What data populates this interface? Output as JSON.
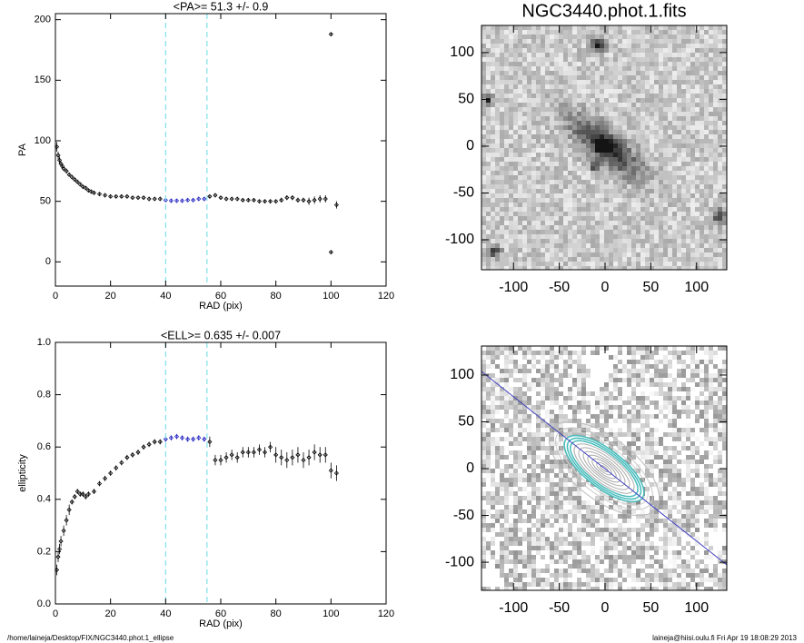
{
  "chart_data": [
    {
      "type": "scatter",
      "title": "<PA>=  51.3 +/-   0.9",
      "xlabel": "RAD (pix)",
      "ylabel": "PA",
      "xlim": [
        0,
        120
      ],
      "ylim": [
        -20,
        205
      ],
      "xticks": [
        0,
        20,
        40,
        60,
        80,
        100,
        120
      ],
      "yticks": [
        0,
        50,
        100,
        150,
        200
      ],
      "vlines": [
        40,
        55
      ],
      "vline_color": "#7fe0e8",
      "series": [
        {
          "color": "#000000",
          "x": [
            0.5,
            1,
            1.5,
            2,
            2.5,
            3,
            4,
            5,
            6,
            7,
            8,
            9,
            10,
            11,
            12,
            13,
            14,
            16,
            18,
            20,
            22,
            24,
            26,
            28,
            30,
            32,
            34,
            36,
            38
          ],
          "values": [
            95,
            88,
            84,
            81,
            79,
            77,
            75,
            72,
            70,
            68,
            66,
            64,
            62,
            61,
            59,
            58,
            57,
            56,
            55,
            54,
            54,
            54,
            54,
            53,
            53,
            53,
            52,
            52,
            52
          ],
          "errors": [
            4,
            3,
            3,
            2,
            2,
            2,
            2,
            1,
            1,
            1,
            1,
            1,
            1,
            1,
            1,
            1,
            1,
            1,
            1,
            1,
            1,
            1,
            1,
            1,
            1,
            1,
            1,
            1,
            1
          ]
        },
        {
          "color": "#2020c0",
          "x": [
            40,
            42,
            44,
            46,
            48,
            50,
            52,
            54
          ],
          "values": [
            51,
            50.5,
            50.5,
            50.5,
            51,
            51,
            52,
            52
          ],
          "errors": [
            1,
            1,
            1,
            1,
            1,
            1,
            1,
            1
          ]
        },
        {
          "color": "#000000",
          "x": [
            56,
            58,
            60,
            62,
            64,
            66,
            68,
            70,
            72,
            74,
            76,
            78,
            80,
            82,
            84,
            86,
            88,
            90,
            92,
            94,
            96,
            98,
            100,
            100,
            102
          ],
          "values": [
            54,
            55,
            53,
            52,
            52,
            52,
            51,
            51,
            51,
            50,
            50,
            50,
            50,
            51,
            53,
            53,
            51,
            51,
            50,
            51,
            52,
            52,
            188,
            8,
            47
          ],
          "errors": [
            1,
            1,
            1,
            1,
            1,
            1,
            1,
            1,
            1,
            1,
            1,
            1,
            1,
            2,
            2,
            2,
            2,
            2,
            3,
            3,
            3,
            3,
            1,
            1,
            3
          ]
        }
      ]
    },
    {
      "type": "scatter",
      "title": "<ELL>= 0.635 +/-  0.007",
      "xlabel": "RAD (pix)",
      "ylabel": "ellipticity",
      "xlim": [
        0,
        120
      ],
      "ylim": [
        0,
        1
      ],
      "xticks": [
        0,
        20,
        40,
        60,
        80,
        100,
        120
      ],
      "yticks": [
        {
          "value": 0,
          "label": "0.0"
        },
        0.2,
        0.4,
        0.6,
        0.8,
        {
          "value": 1,
          "label": "1.0"
        }
      ],
      "vlines": [
        40,
        55
      ],
      "vline_color": "#7fe0e8",
      "series": [
        {
          "color": "#000000",
          "x": [
            0.5,
            1,
            1.5,
            2,
            3,
            4,
            5,
            6,
            7,
            8,
            9,
            10,
            11,
            12,
            14,
            16,
            18,
            20,
            22,
            24,
            26,
            28,
            30,
            32,
            34,
            36,
            38
          ],
          "values": [
            0.13,
            0.18,
            0.21,
            0.24,
            0.28,
            0.32,
            0.36,
            0.39,
            0.41,
            0.43,
            0.42,
            0.42,
            0.41,
            0.42,
            0.43,
            0.46,
            0.48,
            0.5,
            0.52,
            0.54,
            0.56,
            0.57,
            0.58,
            0.6,
            0.61,
            0.62,
            0.62
          ],
          "errors": [
            0.02,
            0.02,
            0.02,
            0.02,
            0.02,
            0.02,
            0.02,
            0.01,
            0.01,
            0.01,
            0.01,
            0.01,
            0.01,
            0.01,
            0.01,
            0.01,
            0.01,
            0.01,
            0.01,
            0.01,
            0.01,
            0.01,
            0.01,
            0.01,
            0.01,
            0.01,
            0.01
          ]
        },
        {
          "color": "#2020c0",
          "x": [
            40,
            42,
            44,
            46,
            48,
            50,
            52,
            54
          ],
          "values": [
            0.63,
            0.635,
            0.64,
            0.635,
            0.63,
            0.63,
            0.635,
            0.63
          ],
          "errors": [
            0.01,
            0.01,
            0.01,
            0.01,
            0.01,
            0.01,
            0.01,
            0.01
          ]
        },
        {
          "color": "#000000",
          "x": [
            56,
            58,
            60,
            62,
            64,
            66,
            68,
            70,
            72,
            74,
            76,
            78,
            80,
            82,
            84,
            86,
            88,
            90,
            92,
            94,
            96,
            98,
            100,
            102
          ],
          "values": [
            0.62,
            0.55,
            0.55,
            0.56,
            0.57,
            0.56,
            0.58,
            0.58,
            0.58,
            0.59,
            0.58,
            0.6,
            0.57,
            0.56,
            0.55,
            0.56,
            0.57,
            0.55,
            0.56,
            0.58,
            0.57,
            0.57,
            0.51,
            0.5
          ],
          "errors": [
            0.02,
            0.02,
            0.02,
            0.02,
            0.02,
            0.02,
            0.02,
            0.02,
            0.02,
            0.02,
            0.02,
            0.02,
            0.03,
            0.03,
            0.03,
            0.03,
            0.03,
            0.03,
            0.03,
            0.03,
            0.03,
            0.03,
            0.03,
            0.03
          ]
        }
      ]
    },
    {
      "type": "image",
      "title": "NGC3440.phot.1.fits",
      "xlim": [
        -135,
        133
      ],
      "ylim": [
        -132,
        129
      ],
      "xticks": [
        -100,
        -50,
        0,
        50,
        100
      ],
      "yticks": [
        -100,
        -50,
        0,
        50,
        100
      ]
    },
    {
      "type": "image",
      "xlim": [
        -135,
        133
      ],
      "ylim": [
        -130,
        131
      ],
      "xticks": [
        -100,
        -50,
        0,
        50,
        100
      ],
      "yticks": [
        -100,
        -50,
        0,
        50,
        100
      ]
    }
  ],
  "footer": {
    "left": "/home/laineja/Desktop/FIX/NGC3440.phot.1_ellipse",
    "right": "laineja@hiisi.oulu.fi  Fri Apr 19 18:08:29 2013"
  }
}
